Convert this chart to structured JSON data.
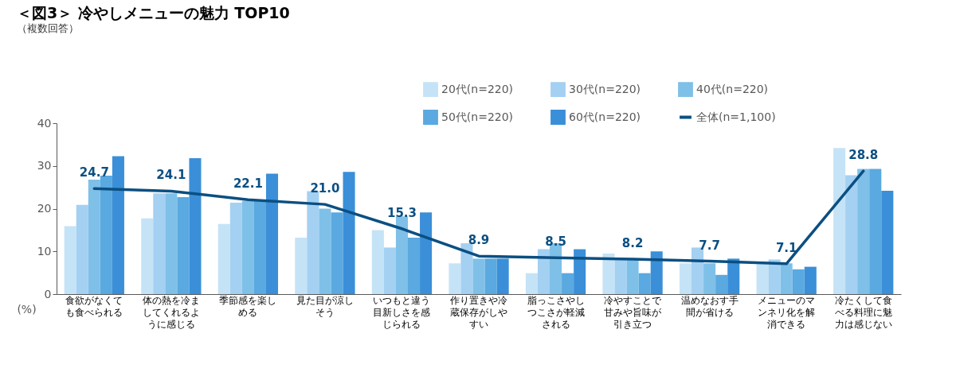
{
  "chart_data": {
    "type": "bar",
    "title": "＜図3＞ 冷やしメニューの魅力 TOP10",
    "subtitle": "（複数回答）",
    "ylabel": "(%)",
    "categories": [
      "食欲がなくても食べられる",
      "体の熱を冷ましてくれるように感じる",
      "季節感を楽しめる",
      "見た目が涼しそう",
      "いつもと違う目新しさを感じられる",
      "作り置きや冷蔵保存がしやすい",
      "脂っこさやしつこさが軽減される",
      "冷やすことで甘みや旨味が引き立つ",
      "温めなおす手間が省ける",
      "メニューのマンネリ化を解消できる",
      "冷たくして食べる料理に魅力は感じない"
    ],
    "series": [
      {
        "name": "20代(n=220)",
        "color": "#c5e3f6",
        "values": [
          15.9,
          17.7,
          16.4,
          13.2,
          15.0,
          7.2,
          4.9,
          9.5,
          7.2,
          7.2,
          34.2
        ]
      },
      {
        "name": "30代(n=220)",
        "color": "#a4d0f2",
        "values": [
          20.9,
          23.6,
          21.4,
          24.1,
          10.9,
          11.9,
          10.5,
          8.3,
          10.9,
          8.1,
          27.8
        ]
      },
      {
        "name": "40代(n=220)",
        "color": "#7fc0e8",
        "values": [
          26.8,
          23.6,
          21.8,
          20.0,
          18.2,
          8.3,
          11.9,
          8.3,
          7.2,
          7.2,
          29.3
        ]
      },
      {
        "name": "50代(n=220)",
        "color": "#5aa9e0",
        "values": [
          27.7,
          22.7,
          21.8,
          19.1,
          13.2,
          8.3,
          4.9,
          4.9,
          4.5,
          5.8,
          29.3
        ]
      },
      {
        "name": "60代(n=220)",
        "color": "#3a8fd8",
        "values": [
          32.3,
          31.8,
          28.2,
          28.6,
          19.1,
          8.3,
          10.5,
          10.0,
          8.3,
          6.4,
          24.2
        ]
      },
      {
        "name": "全体(n=1,100)",
        "color": "#0b4f82",
        "type": "line",
        "value_labels": [
          "24.7",
          "24.1",
          "22.1",
          "21.0",
          "15.3",
          "8.9",
          "8.5",
          "8.2",
          "7.7",
          "7.1",
          "28.8"
        ],
        "values": [
          24.7,
          24.1,
          22.1,
          21.0,
          15.3,
          8.9,
          8.5,
          8.2,
          7.7,
          7.1,
          28.8
        ]
      }
    ],
    "ylim": [
      0,
      40
    ],
    "yticks": [
      0,
      10,
      20,
      30,
      40
    ],
    "grid": false,
    "legend": "top right"
  }
}
